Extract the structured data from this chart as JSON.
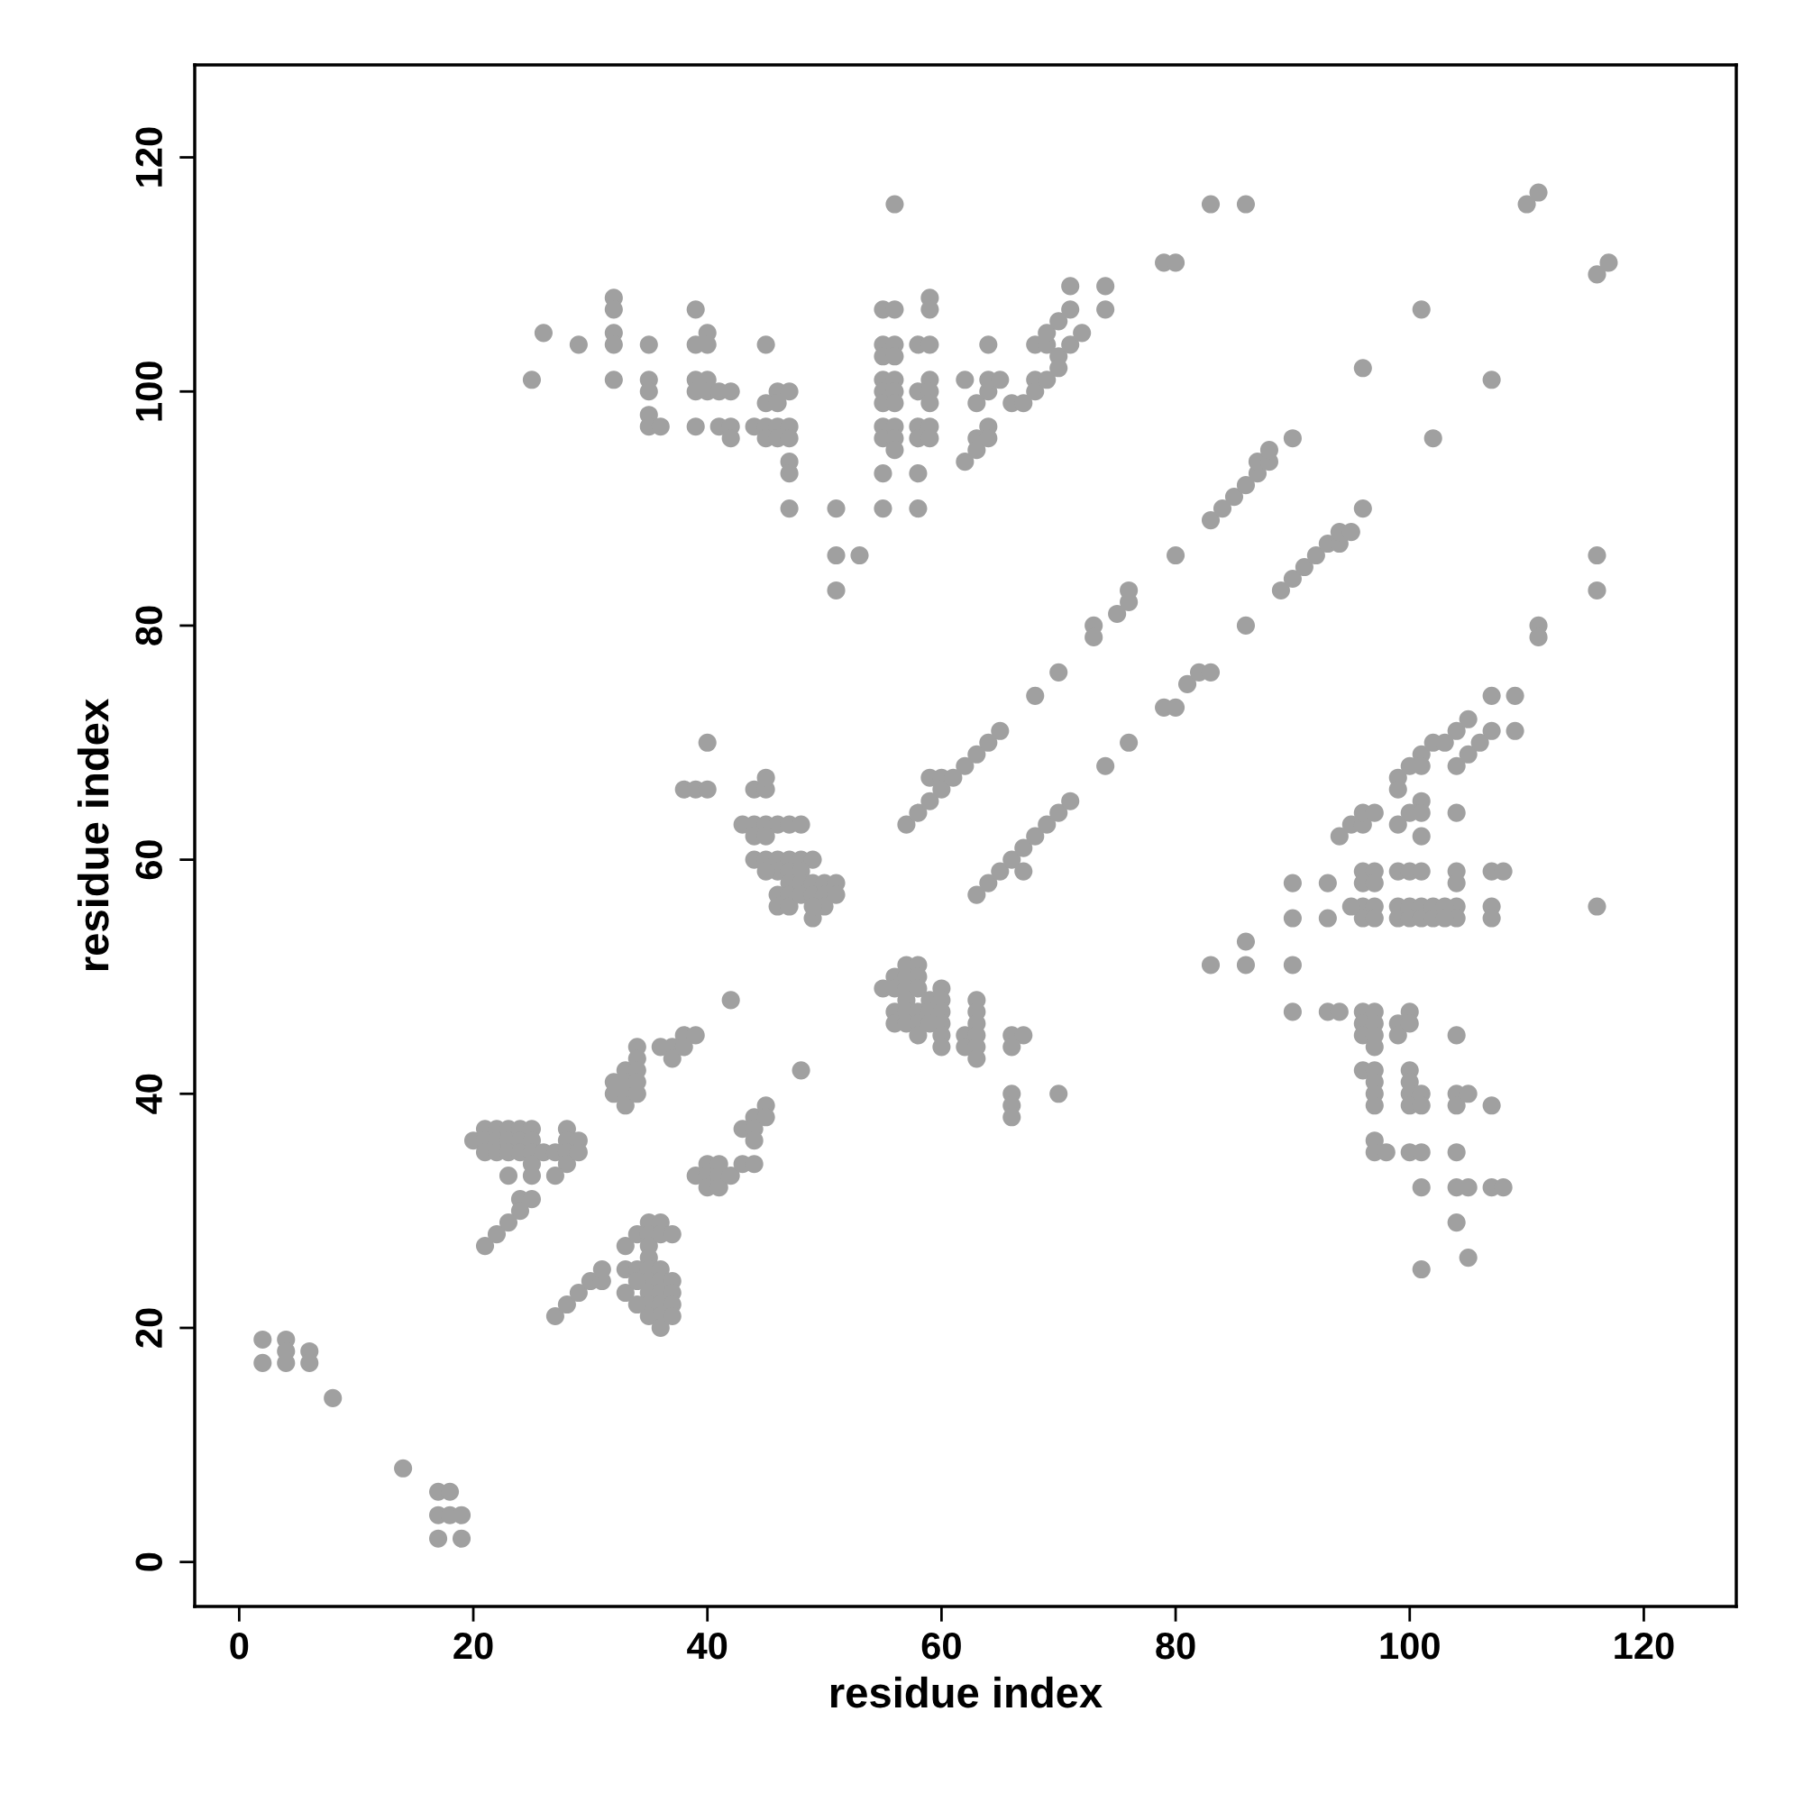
{
  "chart_data": {
    "type": "scatter",
    "xlabel": "residue index",
    "ylabel": "residue index",
    "xlim": [
      -3.8,
      127.9
    ],
    "ylim": [
      -3.8,
      127.9
    ],
    "xticks": [
      0,
      20,
      40,
      60,
      80,
      100,
      120
    ],
    "yticks": [
      0,
      20,
      40,
      60,
      80,
      100,
      120
    ],
    "marker": "circle",
    "series": [
      {
        "color": "#a0a0a0",
        "x": [
          2,
          2,
          4,
          4,
          4,
          6,
          6,
          8,
          14,
          17,
          18,
          17,
          18,
          19,
          17,
          19,
          27,
          28,
          29,
          30,
          31,
          31,
          33,
          33,
          33,
          34,
          34,
          35,
          35,
          35,
          35,
          35,
          35,
          35,
          35,
          35,
          36,
          36,
          36,
          36,
          36,
          36,
          36,
          36,
          37,
          37,
          37,
          37,
          37,
          34,
          34,
          20,
          21,
          21,
          21,
          22,
          22,
          22,
          23,
          23,
          23,
          24,
          24,
          24,
          25,
          25,
          25,
          25,
          26,
          27,
          28,
          28,
          28,
          28,
          29,
          29,
          23,
          25,
          27,
          24,
          25,
          24,
          23,
          22,
          21,
          32,
          32,
          33,
          33,
          33,
          33,
          34,
          34,
          34,
          34,
          34,
          36,
          37,
          37,
          38,
          38,
          39,
          39,
          40,
          40,
          40,
          41,
          41,
          41,
          42,
          43,
          43,
          44,
          44,
          44,
          44,
          45,
          45,
          42,
          48,
          38,
          39,
          40,
          40,
          43,
          44,
          45,
          45,
          44,
          45,
          46,
          47,
          48,
          44,
          45,
          44,
          45,
          46,
          47,
          48,
          49,
          46,
          47,
          48,
          45,
          46,
          46,
          47,
          47,
          47,
          48,
          48,
          49,
          49,
          49,
          50,
          50,
          50,
          51,
          51,
          49,
          55,
          56,
          56,
          56,
          56,
          57,
          57,
          57,
          57,
          57,
          57,
          58,
          58,
          58,
          58,
          58,
          58,
          59,
          59,
          59,
          60,
          60,
          60,
          60,
          60,
          60,
          62,
          62,
          63,
          63,
          63,
          63,
          63,
          63,
          66,
          67,
          66,
          66,
          66,
          66,
          70,
          57,
          58,
          59,
          59,
          60,
          60,
          61,
          62,
          63,
          64,
          65,
          68,
          70,
          73,
          73,
          75,
          76,
          76,
          63,
          64,
          65,
          66,
          67,
          67,
          68,
          69,
          70,
          71,
          74,
          76,
          79,
          80,
          81,
          82,
          83,
          86,
          89,
          90,
          91,
          92,
          93,
          94,
          94,
          95,
          96,
          80,
          83,
          84,
          85,
          86,
          87,
          87,
          88,
          88,
          90,
          25,
          26,
          29,
          32,
          32,
          32,
          32,
          32,
          35,
          35,
          35,
          35,
          35,
          36,
          39,
          39,
          39,
          39,
          39,
          40,
          40,
          40,
          40,
          41,
          41,
          42,
          42,
          42,
          44,
          45,
          45,
          45,
          45,
          46,
          46,
          46,
          46,
          47,
          47,
          47,
          47,
          47,
          47,
          51,
          51,
          51,
          53,
          55,
          55,
          55,
          55,
          55,
          55,
          55,
          55,
          55,
          55,
          56,
          56,
          56,
          56,
          56,
          56,
          56,
          56,
          56,
          56,
          58,
          58,
          58,
          58,
          58,
          58,
          59,
          59,
          59,
          59,
          59,
          59,
          59,
          59,
          62,
          62,
          63,
          63,
          63,
          64,
          64,
          64,
          64,
          64,
          65,
          66,
          67,
          68,
          68,
          68,
          69,
          69,
          69,
          70,
          70,
          70,
          71,
          71,
          71,
          72,
          74,
          74,
          79,
          80,
          83,
          86,
          96,
          101,
          102,
          107,
          110,
          111,
          116,
          117,
          116,
          116,
          111,
          111,
          116,
          83,
          86,
          86,
          90,
          90,
          90,
          90,
          93,
          93,
          93,
          94,
          94,
          95,
          96,
          96,
          97,
          96,
          96,
          96,
          96,
          97,
          97,
          97,
          97,
          95,
          96,
          96,
          96,
          97,
          97,
          97,
          97,
          96,
          97,
          97,
          97,
          97,
          97,
          97,
          98,
          99,
          99,
          99,
          100,
          100,
          101,
          101,
          101,
          101,
          101,
          99,
          99,
          99,
          100,
          100,
          100,
          101,
          101,
          101,
          102,
          102,
          99,
          99,
          100,
          100,
          100,
          100,
          100,
          100,
          101,
          101,
          100,
          101,
          101,
          101,
          102,
          103,
          104,
          104,
          104,
          104,
          104,
          104,
          104,
          103,
          103,
          104,
          104,
          104,
          104,
          104,
          105,
          105,
          104,
          105,
          105,
          105,
          106,
          107,
          107,
          107,
          107,
          107,
          108,
          107,
          107,
          108,
          109,
          109
        ],
        "values": [
          19,
          17,
          19,
          18,
          17,
          18,
          17,
          14,
          8,
          6,
          6,
          4,
          4,
          4,
          2,
          2,
          21,
          22,
          23,
          24,
          24,
          25,
          23,
          25,
          27,
          25,
          28,
          29,
          28,
          27,
          26,
          25,
          24,
          23,
          22,
          21,
          29,
          28,
          25,
          24,
          23,
          22,
          21,
          20,
          28,
          24,
          23,
          22,
          21,
          24,
          22,
          36,
          37,
          36,
          35,
          37,
          36,
          35,
          37,
          36,
          35,
          37,
          36,
          35,
          37,
          36,
          35,
          34,
          35,
          35,
          37,
          36,
          35,
          34,
          36,
          35,
          33,
          33,
          33,
          31,
          31,
          30,
          29,
          28,
          27,
          41,
          40,
          42,
          41,
          40,
          39,
          44,
          43,
          42,
          41,
          40,
          44,
          44,
          43,
          45,
          44,
          45,
          33,
          34,
          33,
          32,
          34,
          33,
          32,
          33,
          34,
          37,
          38,
          37,
          36,
          34,
          39,
          38,
          48,
          42,
          66,
          66,
          66,
          70,
          63,
          66,
          66,
          67,
          63,
          63,
          63,
          63,
          63,
          62,
          62,
          60,
          60,
          60,
          60,
          60,
          60,
          59,
          59,
          59,
          59,
          57,
          56,
          58,
          57,
          56,
          58,
          57,
          58,
          57,
          55,
          58,
          57,
          56,
          58,
          57,
          56,
          49,
          50,
          49,
          47,
          46,
          51,
          50,
          49,
          48,
          47,
          46,
          51,
          50,
          49,
          47,
          46,
          45,
          48,
          47,
          46,
          49,
          48,
          47,
          46,
          45,
          44,
          45,
          44,
          48,
          47,
          46,
          45,
          44,
          43,
          45,
          45,
          44,
          40,
          39,
          38,
          40,
          63,
          64,
          65,
          67,
          67,
          66,
          67,
          68,
          69,
          70,
          71,
          74,
          76,
          80,
          79,
          81,
          82,
          83,
          57,
          58,
          59,
          60,
          59,
          61,
          62,
          63,
          64,
          65,
          68,
          70,
          73,
          73,
          75,
          76,
          76,
          80,
          83,
          84,
          85,
          86,
          87,
          87,
          88,
          88,
          90,
          86,
          89,
          90,
          91,
          92,
          93,
          94,
          94,
          95,
          96,
          101,
          105,
          104,
          108,
          107,
          105,
          104,
          101,
          104,
          101,
          100,
          98,
          97,
          97,
          107,
          104,
          101,
          100,
          97,
          105,
          104,
          101,
          100,
          100,
          97,
          100,
          97,
          96,
          97,
          104,
          99,
          97,
          96,
          100,
          99,
          97,
          96,
          100,
          97,
          96,
          94,
          93,
          90,
          90,
          86,
          83,
          86,
          107,
          104,
          103,
          101,
          100,
          99,
          97,
          96,
          93,
          90,
          116,
          107,
          104,
          103,
          101,
          100,
          99,
          97,
          96,
          95,
          104,
          100,
          97,
          96,
          93,
          90,
          108,
          107,
          104,
          101,
          100,
          99,
          97,
          96,
          101,
          94,
          99,
          96,
          95,
          104,
          100,
          97,
          96,
          101,
          101,
          99,
          99,
          104,
          101,
          100,
          104,
          101,
          105,
          106,
          103,
          102,
          109,
          107,
          104,
          105,
          109,
          107,
          111,
          111,
          116,
          116,
          102,
          107,
          96,
          101,
          116,
          117,
          110,
          111,
          86,
          83,
          80,
          79,
          56,
          51,
          53,
          51,
          58,
          55,
          51,
          47,
          58,
          55,
          47,
          47,
          62,
          63,
          63,
          64,
          64,
          59,
          58,
          56,
          55,
          59,
          58,
          56,
          55,
          56,
          47,
          46,
          45,
          47,
          46,
          45,
          44,
          42,
          42,
          41,
          40,
          39,
          36,
          35,
          35,
          67,
          66,
          63,
          68,
          64,
          69,
          68,
          65,
          64,
          62,
          59,
          56,
          55,
          59,
          56,
          55,
          59,
          56,
          55,
          56,
          55,
          46,
          45,
          47,
          46,
          42,
          41,
          40,
          39,
          40,
          39,
          35,
          35,
          32,
          25,
          70,
          70,
          71,
          68,
          64,
          59,
          58,
          56,
          55,
          56,
          55,
          45,
          40,
          39,
          35,
          32,
          40,
          32,
          29,
          26,
          72,
          69,
          70,
          71,
          74,
          59,
          56,
          55,
          59,
          39,
          32,
          32,
          74,
          71
        ]
      }
    ]
  }
}
